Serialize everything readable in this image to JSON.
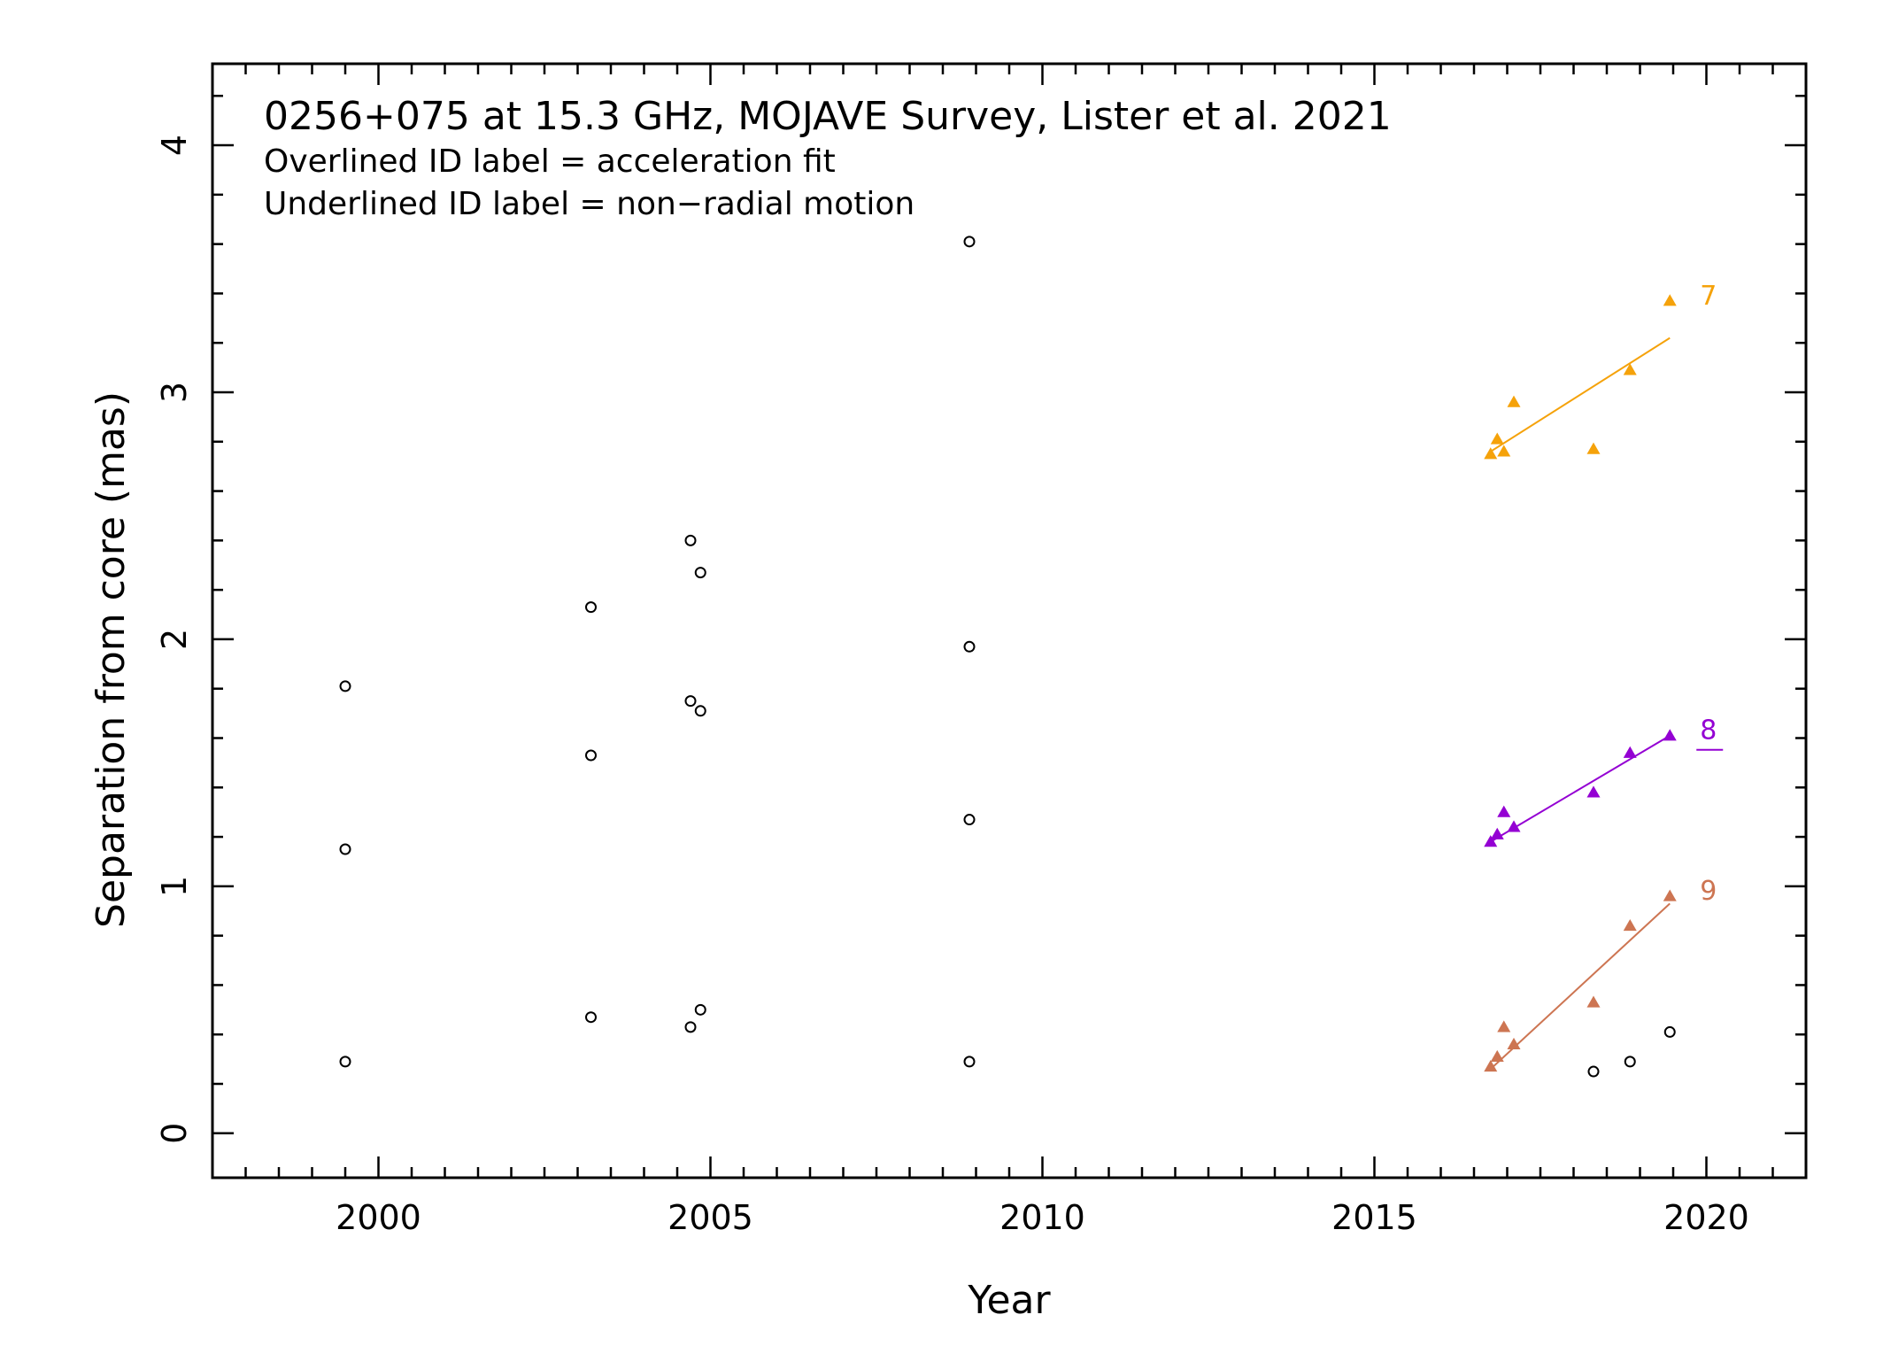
{
  "chart_data": {
    "type": "scatter",
    "title": "0256+075 at 15.3 GHz, MOJAVE Survey, Lister et al. 2021",
    "annotations": [
      "Overlined ID label = acceleration fit",
      "Underlined ID label = non−radial motion"
    ],
    "xlabel": "Year",
    "ylabel": "Separation from core (mas)",
    "xlim": [
      1997.5,
      2021.5
    ],
    "ylim": [
      -0.18,
      4.33
    ],
    "x_ticks": [
      2000,
      2005,
      2010,
      2015,
      2020
    ],
    "x_tick_labels": [
      "2000",
      "2005",
      "2010",
      "2015",
      "2020"
    ],
    "y_ticks": [
      0,
      1,
      2,
      3,
      4
    ],
    "y_tick_labels": [
      "0",
      "1",
      "2",
      "3",
      "4"
    ],
    "x_minor_step": 0.5,
    "y_minor_step": 0.2,
    "unassigned": {
      "marker": "open-circle",
      "color": "#000000",
      "points": [
        [
          1999.5,
          1.81
        ],
        [
          1999.5,
          1.15
        ],
        [
          1999.5,
          0.29
        ],
        [
          2003.2,
          2.13
        ],
        [
          2003.2,
          1.53
        ],
        [
          2003.2,
          0.47
        ],
        [
          2004.7,
          2.4
        ],
        [
          2004.7,
          1.75
        ],
        [
          2004.7,
          0.43
        ],
        [
          2004.85,
          2.27
        ],
        [
          2004.85,
          1.71
        ],
        [
          2004.85,
          0.5
        ],
        [
          2008.9,
          3.61
        ],
        [
          2008.9,
          1.97
        ],
        [
          2008.9,
          1.27
        ],
        [
          2008.9,
          0.29
        ],
        [
          2018.3,
          0.25
        ],
        [
          2018.85,
          0.29
        ],
        [
          2019.45,
          0.41
        ]
      ]
    },
    "series": [
      {
        "name": "7",
        "marker": "filled-triangle",
        "color": "#f5a20a",
        "label_style": "plain",
        "points": [
          [
            2016.75,
            2.75
          ],
          [
            2016.85,
            2.81
          ],
          [
            2016.95,
            2.76
          ],
          [
            2017.1,
            2.96
          ],
          [
            2018.3,
            2.77
          ],
          [
            2018.85,
            3.09
          ],
          [
            2019.45,
            3.37
          ]
        ],
        "fit": [
          [
            2016.75,
            2.76
          ],
          [
            2019.45,
            3.22
          ]
        ]
      },
      {
        "name": "8",
        "marker": "filled-triangle",
        "color": "#9400d3",
        "label_style": "underlined",
        "points": [
          [
            2016.75,
            1.18
          ],
          [
            2016.85,
            1.21
          ],
          [
            2016.95,
            1.3
          ],
          [
            2017.1,
            1.24
          ],
          [
            2018.3,
            1.38
          ],
          [
            2018.85,
            1.54
          ],
          [
            2019.45,
            1.61
          ]
        ],
        "fit": [
          [
            2016.75,
            1.18
          ],
          [
            2019.45,
            1.61
          ]
        ]
      },
      {
        "name": "9",
        "marker": "filled-triangle",
        "color": "#cd7552",
        "label_style": "plain",
        "points": [
          [
            2016.75,
            0.27
          ],
          [
            2016.85,
            0.31
          ],
          [
            2016.95,
            0.43
          ],
          [
            2017.1,
            0.36
          ],
          [
            2018.3,
            0.53
          ],
          [
            2018.85,
            0.84
          ],
          [
            2019.45,
            0.96
          ]
        ],
        "fit": [
          [
            2016.75,
            0.26
          ],
          [
            2019.45,
            0.93
          ]
        ]
      }
    ]
  }
}
